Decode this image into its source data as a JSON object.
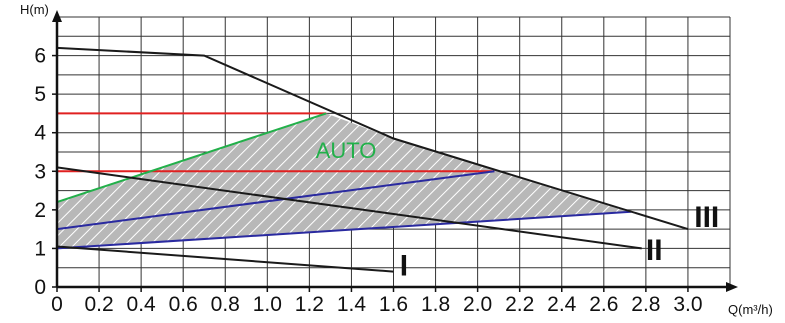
{
  "chart_data": {
    "type": "line",
    "title": "",
    "xlabel": "Q(m³/h)",
    "ylabel": "H(m)",
    "xlim": [
      0,
      3.2
    ],
    "ylim": [
      0,
      7
    ],
    "x_ticks": [
      "0",
      "0.2",
      "0.4",
      "0.6",
      "0.8",
      "1.0",
      "1.2",
      "1.4",
      "1.6",
      "1.8",
      "2.0",
      "2.2",
      "2.4",
      "2.6",
      "2.8",
      "3.0"
    ],
    "y_ticks": [
      "0",
      "1",
      "2",
      "3",
      "4",
      "5",
      "6"
    ],
    "grid": true,
    "colors": {
      "speed_curves": "#1a1a1a",
      "constant_pressure": "#e02020",
      "proportional_pressure": "#2a2aa0",
      "auto": "#22b04a",
      "auto_region": "#b8b8b8",
      "grid": "#333333"
    },
    "series": [
      {
        "name": "I",
        "x": [
          0,
          1.6
        ],
        "y": [
          1.05,
          0.4
        ]
      },
      {
        "name": "II",
        "x": [
          0,
          2.78
        ],
        "y": [
          3.1,
          1.0
        ]
      },
      {
        "name": "III",
        "x": [
          0,
          0.7,
          1.6,
          3.0
        ],
        "y": [
          6.2,
          6.0,
          3.85,
          1.5
        ]
      }
    ],
    "constant_pressure": [
      {
        "x": [
          0,
          1.28
        ],
        "y": [
          4.5,
          4.5
        ]
      },
      {
        "x": [
          0,
          2.08
        ],
        "y": [
          3.0,
          3.0
        ]
      }
    ],
    "proportional_pressure": [
      {
        "x": [
          0,
          2.08
        ],
        "y": [
          1.5,
          3.0
        ]
      },
      {
        "x": [
          0,
          2.73
        ],
        "y": [
          1.0,
          1.95
        ]
      }
    ],
    "auto_line": {
      "x": [
        0,
        1.28
      ],
      "y": [
        2.2,
        4.5
      ]
    },
    "auto_region": {
      "x": [
        0,
        1.28,
        1.6,
        2.73,
        1.2,
        0
      ],
      "y": [
        2.2,
        4.5,
        3.85,
        1.95,
        1.4,
        1.0
      ]
    },
    "curve_labels": [
      {
        "text": "I",
        "x": 1.63,
        "y": 0.3
      },
      {
        "text": "II",
        "x": 2.8,
        "y": 0.7
      },
      {
        "text": "III",
        "x": 3.03,
        "y": 1.55
      }
    ],
    "auto_label": {
      "text": "AUTO",
      "x": 1.23,
      "y": 3.35
    }
  }
}
